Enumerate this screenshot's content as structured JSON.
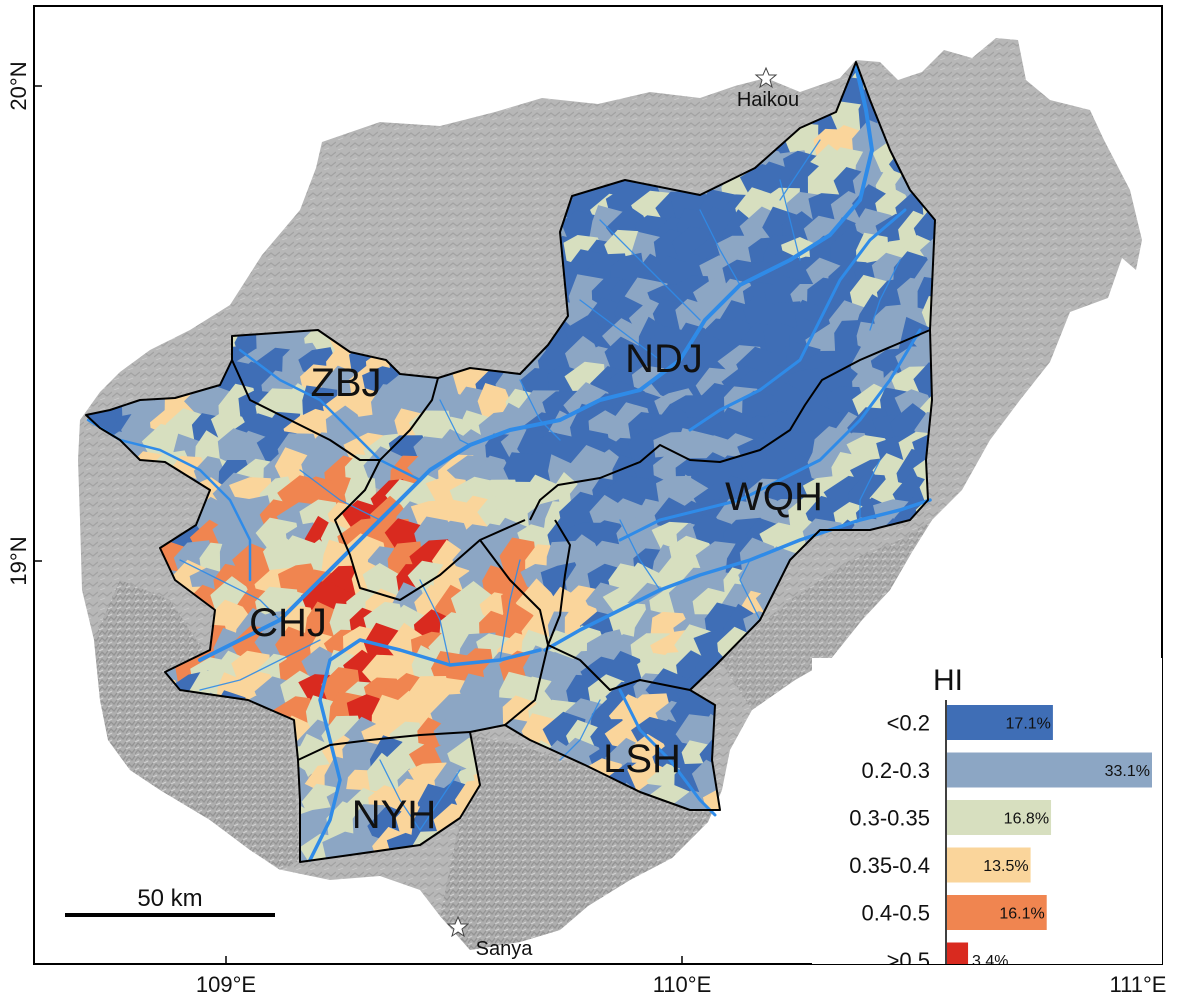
{
  "axes": {
    "lat_labels": [
      "20°N",
      "19°N"
    ],
    "lon_labels": [
      "109°E",
      "110°E",
      "111°E"
    ]
  },
  "cities": [
    {
      "name": "Haikou",
      "icon": "star-icon"
    },
    {
      "name": "Sanya",
      "icon": "star-icon"
    }
  ],
  "basins": [
    {
      "code": "NDJ"
    },
    {
      "code": "ZBJ"
    },
    {
      "code": "WQH"
    },
    {
      "code": "CHJ"
    },
    {
      "code": "LSH"
    },
    {
      "code": "NYH"
    }
  ],
  "scale_bar": {
    "label": "50 km"
  },
  "legend": {
    "title": "HI",
    "classes": [
      {
        "range": "<0.2",
        "percent_label": "17.1%",
        "percent": 17.1,
        "color": "#3F6EB6"
      },
      {
        "range": "0.2-0.3",
        "percent_label": "33.1%",
        "percent": 33.1,
        "color": "#8CA6C4"
      },
      {
        "range": "0.3-0.35",
        "percent_label": "16.8%",
        "percent": 16.8,
        "color": "#D7DFBF"
      },
      {
        "range": "0.35-0.4",
        "percent_label": "13.5%",
        "percent": 13.5,
        "color": "#FAD59B"
      },
      {
        "range": "0.4-0.5",
        "percent_label": "16.1%",
        "percent": 16.1,
        "color": "#F08550"
      },
      {
        "range": ">0.5",
        "percent_label": "3.4%",
        "percent": 3.4,
        "color": "#D92A1F"
      }
    ]
  },
  "colors": {
    "land": "#B4B4B4",
    "river": "#2F8BE8",
    "boundary": "#000000"
  }
}
